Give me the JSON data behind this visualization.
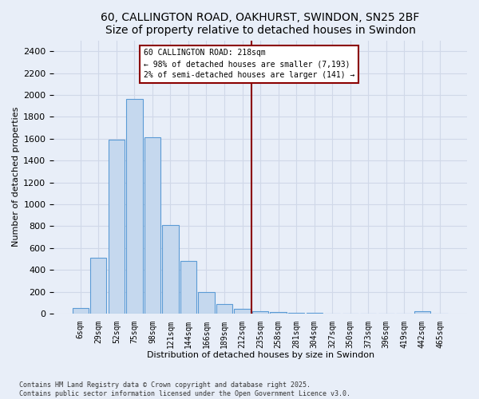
{
  "title1": "60, CALLINGTON ROAD, OAKHURST, SWINDON, SN25 2BF",
  "title2": "Size of property relative to detached houses in Swindon",
  "xlabel": "Distribution of detached houses by size in Swindon",
  "ylabel": "Number of detached properties",
  "footnote": "Contains HM Land Registry data © Crown copyright and database right 2025.\nContains public sector information licensed under the Open Government Licence v3.0.",
  "categories": [
    "6sqm",
    "29sqm",
    "52sqm",
    "75sqm",
    "98sqm",
    "121sqm",
    "144sqm",
    "166sqm",
    "189sqm",
    "212sqm",
    "235sqm",
    "258sqm",
    "281sqm",
    "304sqm",
    "327sqm",
    "350sqm",
    "373sqm",
    "396sqm",
    "419sqm",
    "442sqm",
    "465sqm"
  ],
  "values": [
    50,
    510,
    1590,
    1960,
    1610,
    810,
    485,
    200,
    90,
    40,
    20,
    15,
    10,
    5,
    3,
    3,
    3,
    0,
    0,
    20,
    0
  ],
  "bar_color": "#c5d8ee",
  "bar_edge_color": "#5b9bd5",
  "vline_x_index": 9.5,
  "vline_color": "#8b0000",
  "annotation_line1": "60 CALLINGTON ROAD: 218sqm",
  "annotation_line2": "← 98% of detached houses are smaller (7,193)",
  "annotation_line3": "2% of semi-detached houses are larger (141) →",
  "annotation_box_edgecolor": "#8b0000",
  "annotation_bg_color": "#ffffff",
  "ylim": [
    0,
    2500
  ],
  "yticks": [
    0,
    200,
    400,
    600,
    800,
    1000,
    1200,
    1400,
    1600,
    1800,
    2000,
    2200,
    2400
  ],
  "bg_color": "#e8eef8",
  "grid_color": "#d0d8e8",
  "title_fontsize": 10,
  "axis_label_fontsize": 8
}
